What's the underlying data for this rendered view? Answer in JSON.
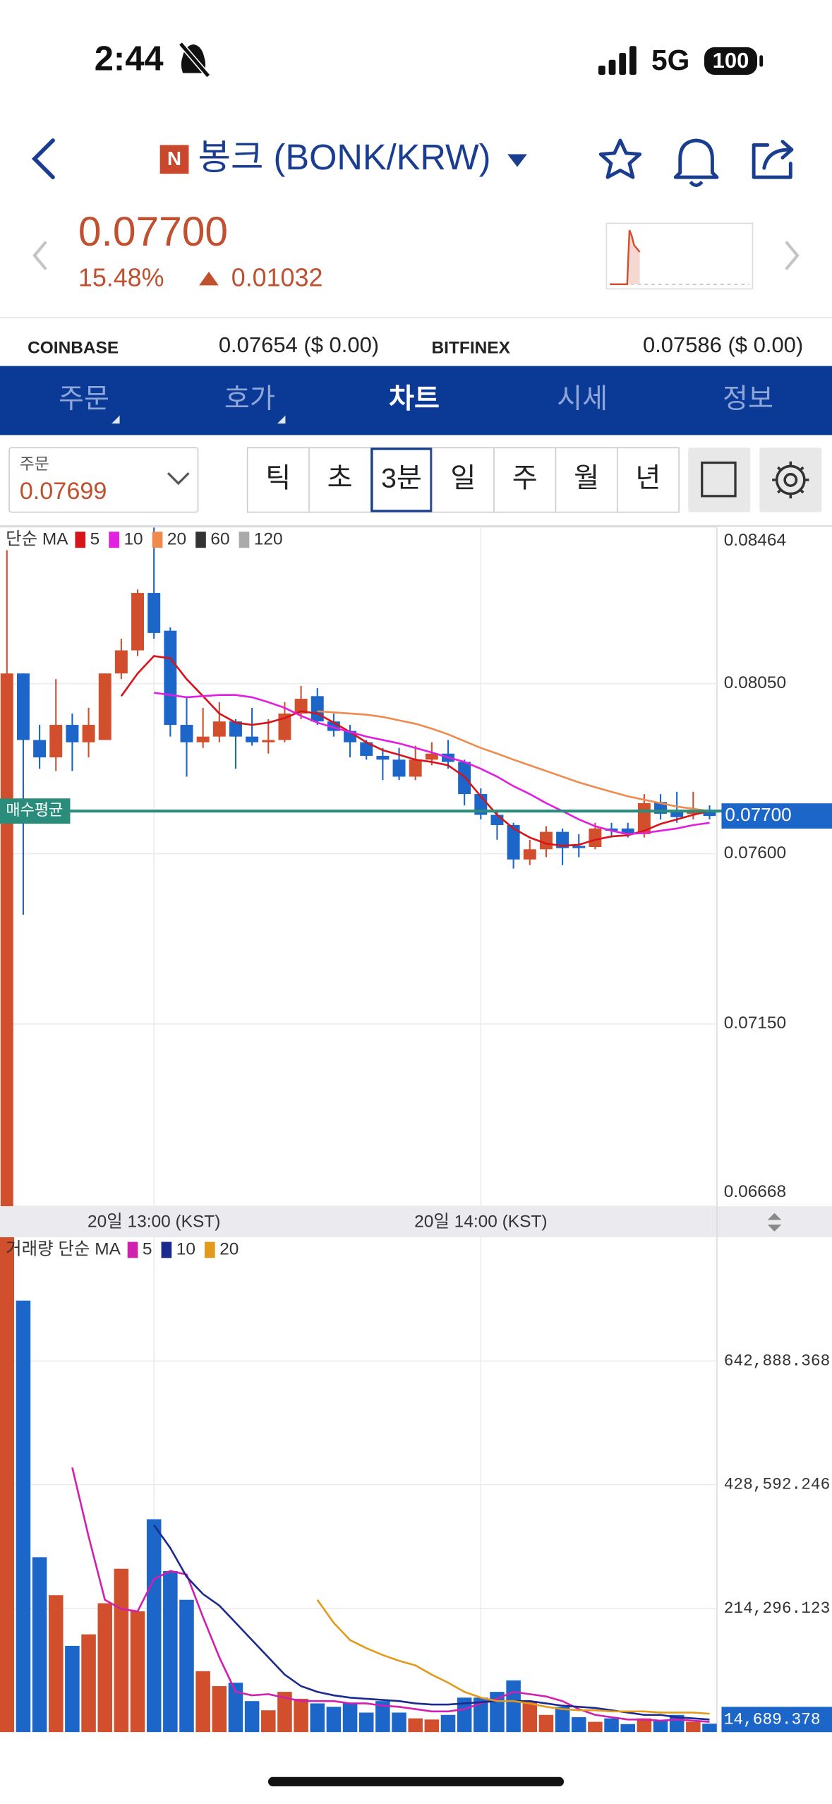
{
  "status_bar": {
    "time": "2:44",
    "network": "5G",
    "battery": "100"
  },
  "header": {
    "badge": "N",
    "title": "봉크 (BONK/KRW)"
  },
  "quote": {
    "price": "0.07700",
    "change_percent": "15.48%",
    "change": "0.01032"
  },
  "exchanges": [
    {
      "name": "COINBASE",
      "price": "0.07654 ($ 0.00)"
    },
    {
      "name": "BITFINEX",
      "price": "0.07586 ($ 0.00)"
    }
  ],
  "tabs": [
    "주문",
    "호가",
    "차트",
    "시세",
    "정보"
  ],
  "active_tab": 2,
  "order_box": {
    "label": "주문",
    "price": "0.07699"
  },
  "intervals": [
    "틱",
    "초",
    "3분",
    "일",
    "주",
    "월",
    "년"
  ],
  "active_interval": 2,
  "chart_data": {
    "type": "candlestick",
    "legend_title": "단순 MA",
    "categories": [
      null,
      null,
      null,
      null,
      null,
      null,
      null,
      null,
      null,
      "20일 13:00 (KST)",
      null,
      null,
      null,
      null,
      null,
      null,
      null,
      null,
      null,
      null,
      null,
      null,
      null,
      null,
      null,
      null,
      null,
      null,
      null,
      "20일 14:00 (KST)",
      null,
      null,
      null,
      null,
      null,
      null,
      null,
      null,
      null,
      null,
      null,
      null,
      null,
      null
    ],
    "open": [
      0.065,
      0.08077,
      0.07901,
      0.07855,
      0.07941,
      0.07895,
      0.07901,
      0.08077,
      0.08138,
      0.0829,
      0.0819,
      0.07941,
      0.07895,
      0.0791,
      0.0795,
      0.0791,
      0.07895,
      0.07901,
      0.07971,
      0.08017,
      0.0795,
      0.07925,
      0.07895,
      0.07859,
      0.07849,
      0.07804,
      0.07849,
      0.07865,
      0.07843,
      0.07758,
      0.07703,
      0.07676,
      0.07585,
      0.07612,
      0.07658,
      0.07621,
      0.07618,
      0.07667,
      0.07667,
      0.07652,
      0.07737,
      0.07713,
      0.07706,
      0.07716
    ],
    "high": [
      0.08403,
      0.08077,
      0.07941,
      0.08062,
      0.07971,
      0.07986,
      0.08077,
      0.08169,
      0.08299,
      0.08463,
      0.08199,
      0.08017,
      0.07986,
      0.08001,
      0.07956,
      0.07986,
      0.07956,
      0.08001,
      0.08044,
      0.08038,
      0.07971,
      0.07941,
      0.07901,
      0.0788,
      0.0788,
      0.07886,
      0.07895,
      0.07901,
      0.07849,
      0.07773,
      0.07713,
      0.07682,
      0.07637,
      0.07673,
      0.07667,
      0.07652,
      0.07682,
      0.07682,
      0.07682,
      0.07758,
      0.07758,
      0.07764,
      0.07764,
      0.07728
    ],
    "low": [
      0.065,
      0.07439,
      0.07825,
      0.07819,
      0.07819,
      0.07855,
      0.07901,
      0.08062,
      0.08123,
      0.08169,
      0.0791,
      0.07804,
      0.0788,
      0.07895,
      0.07825,
      0.07886,
      0.07865,
      0.07895,
      0.07956,
      0.07941,
      0.0791,
      0.07855,
      0.07849,
      0.07795,
      0.07795,
      0.07795,
      0.07834,
      0.07825,
      0.07728,
      0.07691,
      0.07637,
      0.07561,
      0.0757,
      0.07591,
      0.0757,
      0.07591,
      0.07612,
      0.07643,
      0.07643,
      0.07643,
      0.07691,
      0.07682,
      0.07691,
      0.07691
    ],
    "close": [
      0.08077,
      0.07901,
      0.07855,
      0.07941,
      0.07895,
      0.07941,
      0.08077,
      0.08138,
      0.0829,
      0.08184,
      0.07941,
      0.07895,
      0.0791,
      0.0795,
      0.0791,
      0.07895,
      0.07901,
      0.07971,
      0.0801,
      0.0795,
      0.07925,
      0.07895,
      0.07859,
      0.07849,
      0.07804,
      0.07849,
      0.07865,
      0.07843,
      0.07758,
      0.07703,
      0.07676,
      0.07585,
      0.07612,
      0.07658,
      0.07615,
      0.07615,
      0.07667,
      0.07661,
      0.07652,
      0.07734,
      0.07706,
      0.07697,
      0.0771,
      0.077
    ],
    "up_color": "#d24f2d",
    "down_color": "#1c65c9",
    "ylim": [
      0.06668,
      0.08464
    ],
    "yticks": [
      0.08464,
      {
        "value": 0.0805,
        "label": "0.08050"
      },
      {
        "value": 0.076,
        "label": "0.07600"
      },
      {
        "value": 0.0715,
        "label": "0.07150"
      },
      0.06668
    ],
    "grid": true,
    "series": [
      {
        "name": "5",
        "color": "#d8141b",
        "values": [
          null,
          null,
          null,
          null,
          null,
          null,
          null,
          0.08017,
          0.08077,
          0.08123,
          0.08117,
          0.08062,
          0.08017,
          0.07971,
          0.07947,
          0.07941,
          0.07947,
          0.07959,
          0.07977,
          0.07971,
          0.07947,
          0.07922,
          0.07895,
          0.07874,
          0.07862,
          0.07849,
          0.07843,
          0.07834,
          0.07804,
          0.07752,
          0.07703,
          0.07667,
          0.07643,
          0.07627,
          0.07621,
          0.07624,
          0.07637,
          0.07646,
          0.07649,
          0.07661,
          0.07679,
          0.07691,
          0.07703,
          0.07713
        ]
      },
      {
        "name": "10",
        "color": "#e21ee0",
        "values": [
          null,
          null,
          null,
          null,
          null,
          null,
          null,
          null,
          null,
          0.08026,
          0.0802,
          0.08014,
          0.08017,
          0.0802,
          0.0802,
          0.08014,
          0.08001,
          0.07986,
          0.07965,
          0.07947,
          0.07934,
          0.07922,
          0.0791,
          0.07901,
          0.07892,
          0.0788,
          0.07868,
          0.07855,
          0.07843,
          0.07825,
          0.07804,
          0.07779,
          0.07758,
          0.07734,
          0.07713,
          0.07691,
          0.07673,
          0.07661,
          0.07652,
          0.07655,
          0.07661,
          0.07667,
          0.07676,
          0.07682
        ]
      },
      {
        "name": "20",
        "color": "#ef8a4c",
        "values": [
          null,
          null,
          null,
          null,
          null,
          null,
          null,
          null,
          null,
          null,
          null,
          null,
          null,
          null,
          null,
          null,
          null,
          null,
          null,
          0.07977,
          0.07974,
          0.07971,
          0.07968,
          0.07962,
          0.07953,
          0.07944,
          0.07931,
          0.07916,
          0.07898,
          0.0788,
          0.07865,
          0.07849,
          0.07834,
          0.07819,
          0.07804,
          0.07789,
          0.07776,
          0.07764,
          0.07752,
          0.07743,
          0.07734,
          0.07725,
          0.07719,
          0.07713
        ]
      }
    ],
    "legend_extra": [
      {
        "name": "60",
        "color": "#333333"
      },
      {
        "name": "120",
        "color": "#aaaaaa"
      }
    ],
    "avg_price_line": {
      "label": "매수평균",
      "value": 0.07713,
      "color": "#2a8c7a"
    },
    "last_price": {
      "value": 0.077,
      "label": "0.07700"
    },
    "volume": {
      "legend_title": "거래량 단순 MA",
      "values": [
        900000,
        747500,
        303000,
        237200,
        149500,
        169400,
        223300,
        283000,
        209300,
        368800,
        279100,
        229200,
        105600,
        79700,
        85700,
        53800,
        37900,
        69800,
        57800,
        49800,
        43900,
        49800,
        33900,
        53800,
        33900,
        23900,
        21900,
        29900,
        59800,
        59800,
        69800,
        89700,
        53800,
        29900,
        43900,
        25900,
        17900,
        23900,
        14000,
        23900,
        19900,
        29900,
        17900,
        14689.378
      ],
      "ylim": [
        0,
        857184
      ],
      "yticks": [
        {
          "value": 214296.123,
          "label": "214,296.123"
        },
        {
          "value": 428592.246,
          "label": "428,592.246"
        },
        {
          "value": 642888.368,
          "label": "642,888.368"
        }
      ],
      "last": {
        "value": 14689.378,
        "label": "14,689.378"
      },
      "series": [
        {
          "name": "5",
          "color": "#d11fb0",
          "values": [
            null,
            null,
            null,
            null,
            458500,
            338900,
            229200,
            213300,
            209300,
            265100,
            279100,
            273100,
            199300,
            129600,
            69800,
            63800,
            65800,
            59800,
            53800,
            53800,
            53800,
            49800,
            49800,
            45800,
            43900,
            39900,
            35900,
            35900,
            39900,
            49800,
            57800,
            69800,
            65800,
            61800,
            53800,
            39900,
            29900,
            25900,
            21900,
            21900,
            19900,
            21900,
            19900,
            17900
          ]
        },
        {
          "name": "10",
          "color": "#1a2a8f",
          "values": [
            null,
            null,
            null,
            null,
            null,
            null,
            null,
            null,
            null,
            358800,
            318900,
            269100,
            239200,
            219300,
            189400,
            159500,
            129600,
            99700,
            79700,
            69800,
            63800,
            59800,
            57800,
            55800,
            53800,
            49800,
            47800,
            47800,
            49800,
            51800,
            53800,
            53800,
            53800,
            49800,
            45800,
            43900,
            41900,
            37900,
            33900,
            29900,
            29900,
            25900,
            23900,
            21900
          ]
        },
        {
          "name": "20",
          "color": "#e39a1c",
          "values": [
            null,
            null,
            null,
            null,
            null,
            null,
            null,
            null,
            null,
            null,
            null,
            null,
            null,
            null,
            null,
            null,
            null,
            null,
            null,
            229200,
            189400,
            159500,
            145500,
            133600,
            123600,
            115600,
            99700,
            85700,
            69800,
            59800,
            53800,
            53800,
            49800,
            43900,
            39900,
            37900,
            37900,
            35900,
            35900,
            35900,
            33900,
            33900,
            33900,
            31900
          ]
        }
      ]
    }
  }
}
